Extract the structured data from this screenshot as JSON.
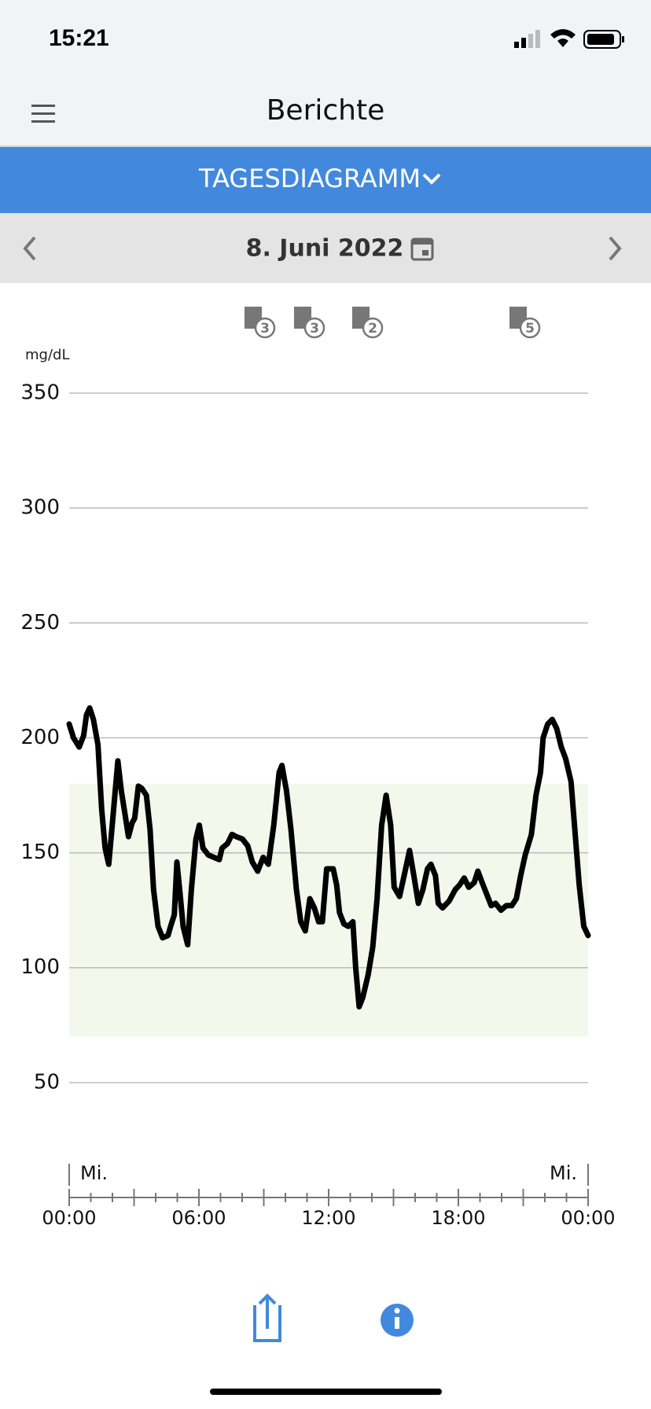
{
  "status_bar": {
    "time": "15:21"
  },
  "header": {
    "title": "Berichte"
  },
  "tab": {
    "label": "TAGESDIAGRAMM"
  },
  "date_bar": {
    "date": "8. Juni 2022"
  },
  "event_badges": [
    3,
    3,
    2,
    5
  ],
  "chart_data": {
    "type": "line",
    "y_unit": "mg/dL",
    "xlim": [
      0,
      24
    ],
    "ylim": [
      0,
      350
    ],
    "yticks": [
      50,
      100,
      150,
      200,
      250,
      300,
      350
    ],
    "xticks": [
      {
        "value": 0,
        "label": "00:00"
      },
      {
        "value": 6,
        "label": "06:00"
      },
      {
        "value": 12,
        "label": "12:00"
      },
      {
        "value": 18,
        "label": "18:00"
      },
      {
        "value": 24,
        "label": "00:00"
      }
    ],
    "xminorticks": [
      0,
      1,
      2,
      3,
      4,
      5,
      6,
      7,
      8,
      9,
      10,
      11,
      12,
      13,
      14,
      15,
      16,
      17,
      18,
      19,
      20,
      21,
      22,
      23,
      24
    ],
    "day_markers": [
      {
        "value": 0,
        "label": "Mi."
      },
      {
        "value": 24,
        "label": "Mi."
      }
    ],
    "target_range": [
      70,
      180
    ],
    "target_color": "#f3f7ec",
    "grid": true,
    "x": [
      0,
      0.2,
      0.46,
      0.67,
      0.8,
      0.95,
      1.12,
      1.33,
      1.5,
      1.66,
      1.83,
      2.0,
      2.25,
      2.41,
      2.58,
      2.74,
      2.91,
      3.03,
      3.2,
      3.36,
      3.57,
      3.74,
      3.9,
      4.11,
      4.32,
      4.57,
      4.69,
      4.86,
      4.98,
      5.11,
      5.27,
      5.48,
      5.65,
      5.86,
      6.02,
      6.19,
      6.44,
      6.69,
      6.94,
      7.07,
      7.32,
      7.53,
      7.73,
      8.01,
      8.26,
      8.47,
      8.72,
      8.97,
      9.21,
      9.46,
      9.71,
      9.84,
      10.05,
      10.26,
      10.51,
      10.71,
      10.92,
      11.13,
      11.34,
      11.54,
      11.71,
      11.91,
      12.21,
      12.37,
      12.5,
      12.71,
      12.91,
      13.12,
      13.25,
      13.41,
      13.58,
      13.83,
      14.04,
      14.24,
      14.45,
      14.66,
      14.87,
      15.03,
      15.28,
      15.49,
      15.74,
      15.94,
      16.15,
      16.36,
      16.57,
      16.73,
      16.94,
      17.07,
      17.27,
      17.57,
      17.86,
      18.06,
      18.27,
      18.48,
      18.73,
      18.9,
      19.1,
      19.31,
      19.52,
      19.72,
      19.97,
      20.22,
      20.47,
      20.68,
      20.88,
      21.09,
      21.38,
      21.59,
      21.8,
      21.92,
      22.13,
      22.34,
      22.55,
      22.76,
      22.96,
      23.21,
      23.38,
      23.59,
      23.8,
      24.0
    ],
    "series": [
      {
        "color": "#000000",
        "values": [
          206,
          200,
          196,
          201,
          210,
          213,
          208,
          197,
          169,
          152,
          145,
          163,
          190,
          177,
          167,
          157,
          163,
          165,
          179,
          178,
          175,
          160,
          134,
          118,
          113,
          114,
          118,
          123,
          146,
          134,
          118,
          110,
          134,
          156,
          162,
          152,
          149,
          148,
          147,
          152,
          154,
          158,
          157,
          156,
          153,
          146,
          142,
          148,
          145,
          162,
          185,
          188,
          177,
          160,
          134,
          120,
          116,
          130,
          126,
          120,
          120,
          143,
          143,
          136,
          124,
          119,
          118,
          120,
          100,
          83,
          87,
          97,
          109,
          130,
          162,
          175,
          162,
          135,
          131,
          140,
          151,
          140,
          128,
          134,
          143,
          145,
          140,
          128,
          126,
          129,
          134,
          136,
          139,
          135,
          137,
          142,
          137,
          132,
          127,
          128,
          125,
          127,
          127,
          130,
          140,
          149,
          158,
          175,
          185,
          200,
          206,
          208,
          204,
          196,
          191,
          181,
          161,
          136,
          118,
          114
        ]
      }
    ]
  }
}
